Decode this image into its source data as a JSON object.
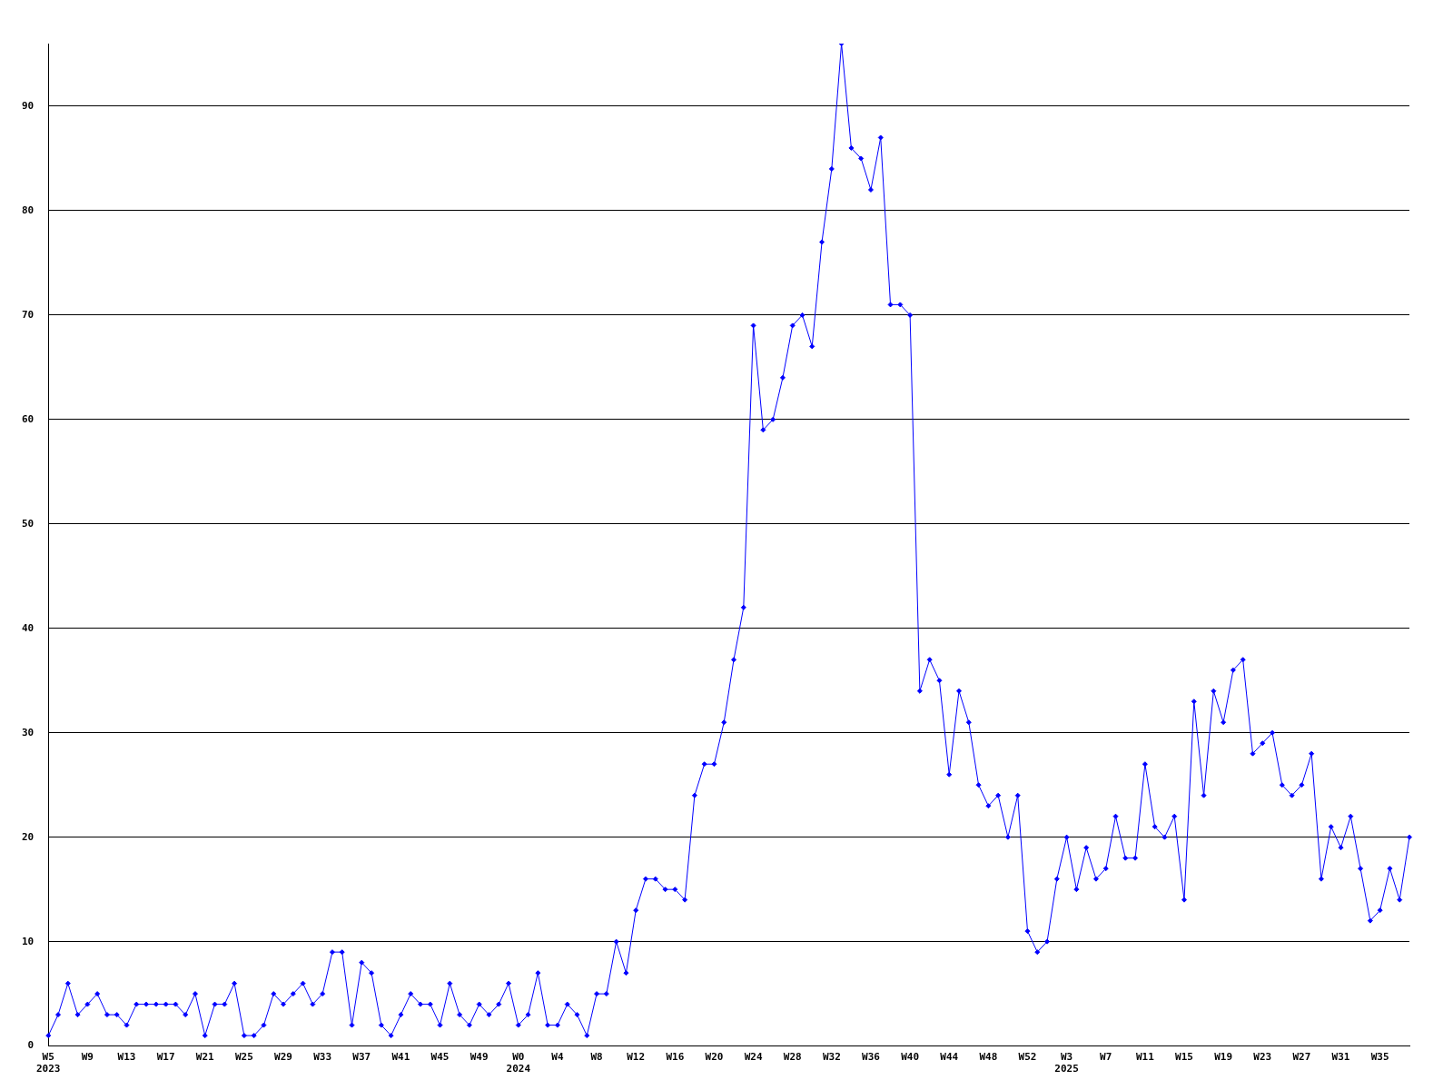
{
  "chart_data": {
    "type": "line",
    "categories": [
      "W5\n2023",
      null,
      null,
      null,
      "W9",
      null,
      null,
      null,
      "W13",
      null,
      null,
      null,
      "W17",
      null,
      null,
      null,
      "W21",
      null,
      null,
      null,
      "W25",
      null,
      null,
      null,
      "W29",
      null,
      null,
      null,
      "W33",
      null,
      null,
      null,
      "W37",
      null,
      null,
      null,
      "W41",
      null,
      null,
      null,
      "W45",
      null,
      null,
      null,
      "W49",
      null,
      null,
      null,
      "W0\n2024",
      null,
      null,
      null,
      "W4",
      null,
      null,
      null,
      "W8",
      null,
      null,
      null,
      "W12",
      null,
      null,
      null,
      "W16",
      null,
      null,
      null,
      "W20",
      null,
      null,
      null,
      "W24",
      null,
      null,
      null,
      "W28",
      null,
      null,
      null,
      "W32",
      null,
      null,
      null,
      "W36",
      null,
      null,
      null,
      "W40",
      null,
      null,
      null,
      "W44",
      null,
      null,
      null,
      "W48",
      null,
      null,
      null,
      "W52",
      null,
      null,
      null,
      "W3\n2025",
      null,
      null,
      null,
      "W7",
      null,
      null,
      null,
      "W11",
      null,
      null,
      null,
      "W15",
      null,
      null,
      null,
      "W19",
      null,
      null,
      null,
      "W23",
      null,
      null,
      null,
      "W27",
      null,
      null,
      null,
      "W31",
      null,
      null,
      null,
      "W35",
      null,
      null,
      null
    ],
    "series": [
      {
        "color": "#0000ff",
        "values": [
          1,
          3,
          6,
          3,
          4,
          5,
          3,
          3,
          2,
          4,
          4,
          4,
          4,
          4,
          3,
          5,
          1,
          4,
          4,
          6,
          1,
          1,
          2,
          5,
          4,
          5,
          6,
          4,
          5,
          9,
          9,
          2,
          8,
          7,
          2,
          1,
          3,
          5,
          4,
          4,
          2,
          6,
          3,
          2,
          4,
          3,
          4,
          6,
          2,
          3,
          7,
          2,
          2,
          4,
          3,
          1,
          5,
          5,
          10,
          7,
          13,
          16,
          16,
          15,
          15,
          14,
          24,
          27,
          27,
          31,
          37,
          42,
          69,
          59,
          60,
          64,
          69,
          70,
          67,
          77,
          84,
          96,
          86,
          85,
          82,
          87,
          71,
          71,
          70,
          34,
          37,
          35,
          26,
          34,
          31,
          25,
          23,
          24,
          20,
          24,
          11,
          9,
          10,
          16,
          20,
          15,
          19,
          16,
          17,
          22,
          18,
          18,
          27,
          21,
          20,
          22,
          14,
          33,
          24,
          34,
          31,
          36,
          37,
          28,
          29,
          30,
          25,
          24,
          25,
          28,
          16,
          21,
          19,
          22,
          17,
          12,
          13,
          17,
          14,
          20
        ]
      }
    ],
    "ylim": [
      0,
      96
    ],
    "yticks": [
      0,
      10,
      20,
      30,
      40,
      50,
      60,
      70,
      80,
      90
    ],
    "grid": "y",
    "legend": false,
    "marker": "diamond",
    "line_style": "solid"
  }
}
